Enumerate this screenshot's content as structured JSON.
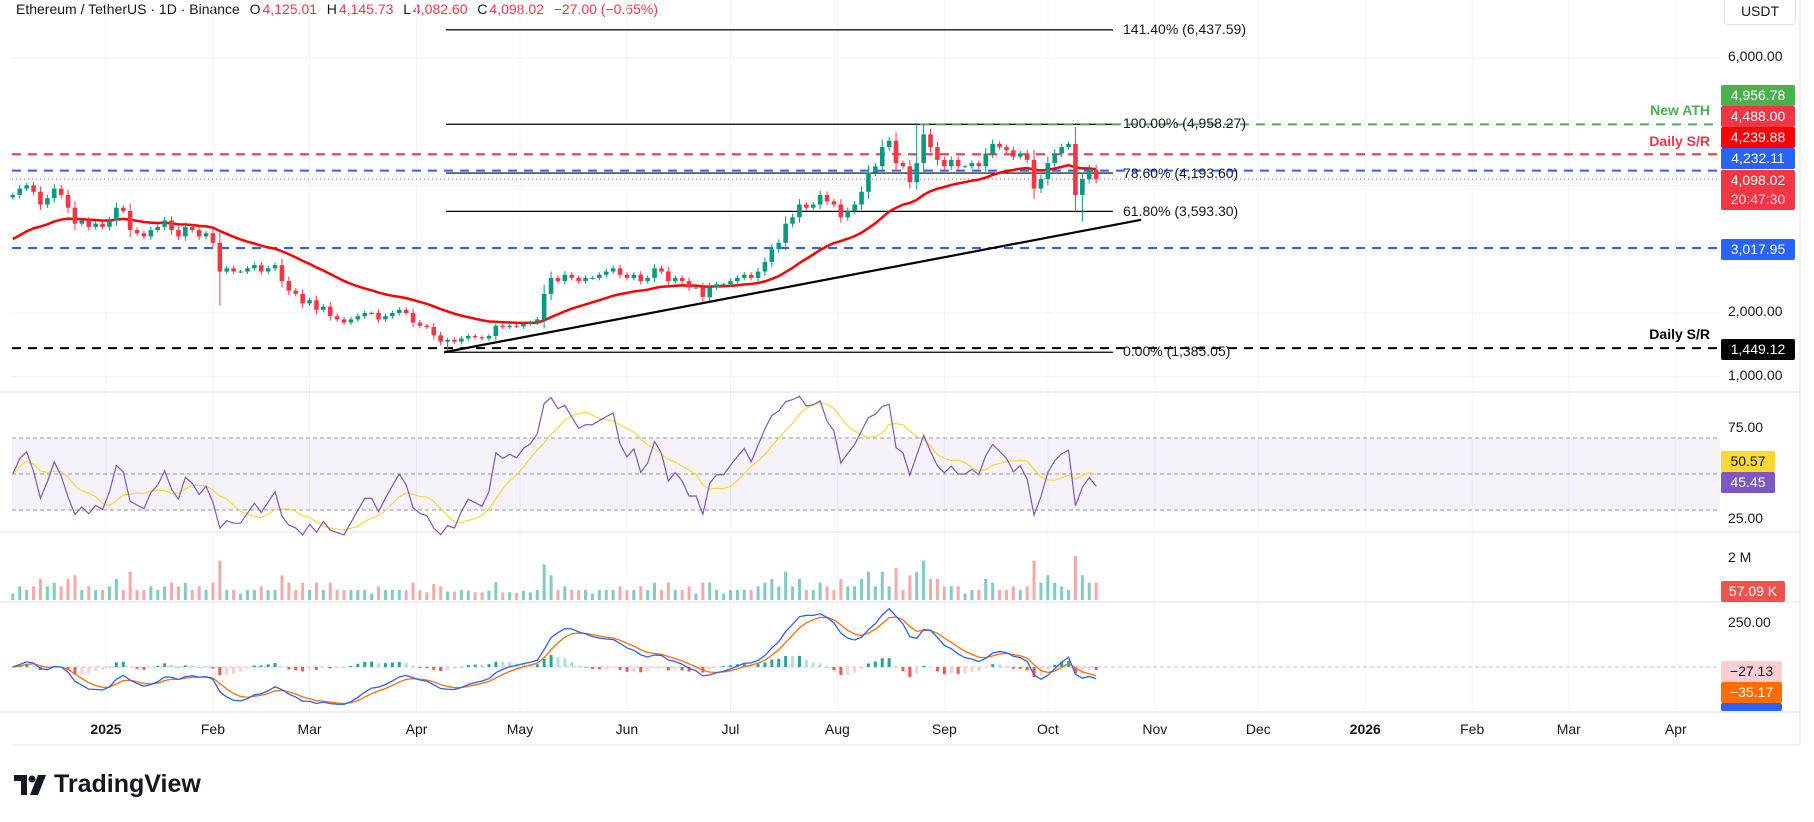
{
  "header": {
    "symbol": "Ethereum / TetherUS · 1D · Binance",
    "o_label": "O",
    "o": "4,125.01",
    "h_label": "H",
    "h": "4,145.73",
    "l_label": "L",
    "l": "4,082.60",
    "c_label": "C",
    "c": "4,098.02",
    "change": "−27.00 (−0.65%)"
  },
  "currency": "USDT",
  "logo": "TradingView",
  "colors": {
    "up": "#089981",
    "down": "#F23645",
    "ma": "#FF0000",
    "ath": "#4CAF50",
    "sr_red": "#F23645",
    "blue": "#2962FF",
    "rsi": "#7E57C2",
    "rsi_ma": "#FDD835",
    "macd": "#2962FF",
    "signal": "#FF6D00"
  },
  "price_scale": {
    "ticks": [
      "6,000.00",
      "2,000.00",
      "1,000.00"
    ]
  },
  "price_labels": {
    "ath": "4,956.78",
    "sr_upper": "4,488.00",
    "ma": "4,239.88",
    "blue_upper": "4,232.11",
    "last": "4,098.02",
    "countdown": "20:47:30",
    "blue_lower": "3,017.95",
    "sr_lower": "1,449.12"
  },
  "annotations": {
    "ath": "New ATH",
    "sr_upper": "Daily S/R",
    "sr_lower": "Daily S/R"
  },
  "fibonacci": [
    {
      "label": "141.40% (6,437.59)",
      "price": 6437.59
    },
    {
      "label": "100.00% (4,958.27)",
      "price": 4958.27
    },
    {
      "label": "78.60% (4,193.60)",
      "price": 4193.6
    },
    {
      "label": "61.80% (3,593.30)",
      "price": 3593.3
    },
    {
      "label": "0.00% (1,385.05)",
      "price": 1385.05
    }
  ],
  "rsi": {
    "ticks": [
      "75.00",
      "25.00"
    ],
    "ma_value": "50.57",
    "value": "45.45"
  },
  "volume": {
    "tick": "2 M",
    "value": "57.09 K"
  },
  "macd": {
    "tick": "250.00",
    "histogram": "−27.13",
    "signal": "−35.17"
  },
  "time_axis": [
    "2025",
    "Feb",
    "Mar",
    "Apr",
    "May",
    "Jun",
    "Jul",
    "Aug",
    "Sep",
    "Oct",
    "Nov",
    "Dec",
    "2026",
    "Feb",
    "Mar",
    "Apr"
  ],
  "chart_data": {
    "type": "candlestick",
    "title": "Ethereum / TetherUS · 1D · Binance",
    "scale": "linear",
    "ylim": [
      900,
      6600
    ],
    "start": "2024-12-05",
    "end": "2025-10-15",
    "closes": [
      3850,
      3950,
      4000,
      3900,
      3700,
      3800,
      3950,
      3850,
      3650,
      3400,
      3450,
      3350,
      3400,
      3350,
      3450,
      3650,
      3600,
      3300,
      3250,
      3200,
      3300,
      3350,
      3450,
      3300,
      3200,
      3350,
      3300,
      3200,
      3250,
      3100,
      2650,
      2700,
      2650,
      2650,
      2700,
      2750,
      2650,
      2700,
      2750,
      2500,
      2350,
      2300,
      2150,
      2200,
      2050,
      2100,
      1950,
      1900,
      1850,
      1900,
      1950,
      2000,
      2000,
      1900,
      1950,
      2000,
      2050,
      2000,
      1850,
      1800,
      1780,
      1650,
      1550,
      1580,
      1550,
      1600,
      1640,
      1620,
      1600,
      1640,
      1800,
      1780,
      1800,
      1790,
      1830,
      1850,
      1900,
      2300,
      2550,
      2500,
      2600,
      2550,
      2500,
      2550,
      2550,
      2600,
      2650,
      2700,
      2600,
      2550,
      2600,
      2500,
      2550,
      2700,
      2650,
      2500,
      2550,
      2500,
      2400,
      2400,
      2250,
      2400,
      2450,
      2450,
      2500,
      2550,
      2600,
      2550,
      2650,
      2800,
      3000,
      3100,
      3400,
      3500,
      3700,
      3650,
      3700,
      3850,
      3750,
      3700,
      3500,
      3600,
      3700,
      3900,
      4200,
      4300,
      4600,
      4700,
      4350,
      4300,
      4050,
      4350,
      4800,
      4600,
      4400,
      4300,
      4400,
      4300,
      4300,
      4350,
      4300,
      4500,
      4650,
      4600,
      4550,
      4450,
      4500,
      4400,
      3950,
      4100,
      4350,
      4500,
      4600,
      4650,
      3850,
      4100,
      4250,
      4098.02
    ],
    "extremes": [
      {
        "date": "2025-02-03",
        "low": 2120
      },
      {
        "date": "2025-04-09",
        "low": 1385.05
      },
      {
        "date": "2025-08-24",
        "high": 4956.78
      },
      {
        "date": "2025-10-10",
        "low": 3435
      }
    ],
    "horizontal_levels": [
      {
        "name": "New ATH",
        "price": 4956.78,
        "style": "dashed",
        "color": "#4CAF50"
      },
      {
        "name": "Daily S/R",
        "price": 4488.0,
        "style": "dashed",
        "color": "#F23645"
      },
      {
        "price": 4232.11,
        "style": "dashed",
        "color": "#2962FF"
      },
      {
        "price": 3017.95,
        "style": "dashed",
        "color": "#2962FF"
      },
      {
        "name": "Daily S/R",
        "price": 1449.12,
        "style": "dashed",
        "color": "#000000"
      }
    ],
    "trendline": [
      {
        "date": "2025-04-09",
        "price": 1385.05
      },
      {
        "date": "2025-10-28",
        "price": 3460
      }
    ],
    "indicators": [
      "MA (red)",
      "RSI with MA",
      "Volume",
      "MACD"
    ]
  }
}
